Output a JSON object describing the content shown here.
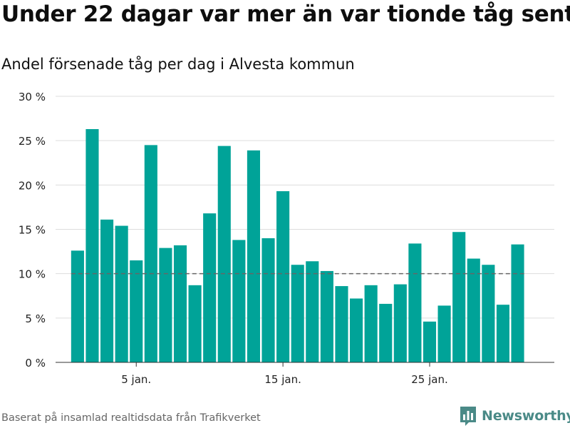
{
  "title": "Under 22 dagar var mer än var tionde tåg sent",
  "subtitle": "Andel försenade tåg per dag i Alvesta kommun",
  "source": "Baserat på insamlad realtidsdata från Trafikverket",
  "brand": {
    "name": "Newsworthy",
    "color": "#4a8a87"
  },
  "colors": {
    "bar": "#00a398",
    "reference_line": "#666666",
    "grid": "#dddddd"
  },
  "chart_data": {
    "type": "bar",
    "x": [
      1,
      2,
      3,
      4,
      5,
      6,
      7,
      8,
      9,
      10,
      11,
      12,
      13,
      14,
      15,
      16,
      17,
      18,
      19,
      20,
      21,
      22,
      23,
      24,
      25,
      26,
      27,
      28,
      29,
      30,
      31
    ],
    "values": [
      12.6,
      26.3,
      16.1,
      15.4,
      11.5,
      24.5,
      12.9,
      13.2,
      8.7,
      16.8,
      24.4,
      13.8,
      23.9,
      14.0,
      19.3,
      11.0,
      11.4,
      10.3,
      8.6,
      7.2,
      8.7,
      6.6,
      8.8,
      13.4,
      4.6,
      6.4,
      14.7,
      11.7,
      11.0,
      6.5,
      13.3
    ],
    "x_ticks": [
      {
        "x": 5,
        "label": "5 jan."
      },
      {
        "x": 15,
        "label": "15 jan."
      },
      {
        "x": 25,
        "label": "25 jan."
      }
    ],
    "y_ticks": [
      {
        "value": 0,
        "label": "0 %"
      },
      {
        "value": 5,
        "label": "5 %"
      },
      {
        "value": 10,
        "label": "10 %"
      },
      {
        "value": 15,
        "label": "15 %"
      },
      {
        "value": 20,
        "label": "20 %"
      },
      {
        "value": 25,
        "label": "25 %"
      },
      {
        "value": 30,
        "label": "30 %"
      }
    ],
    "ylim": [
      0,
      30
    ],
    "xlim": [
      -0.5,
      33.5
    ],
    "reference_line": {
      "value": 10,
      "style": "dashed"
    },
    "grid": true,
    "xlabel": "",
    "ylabel": ""
  }
}
